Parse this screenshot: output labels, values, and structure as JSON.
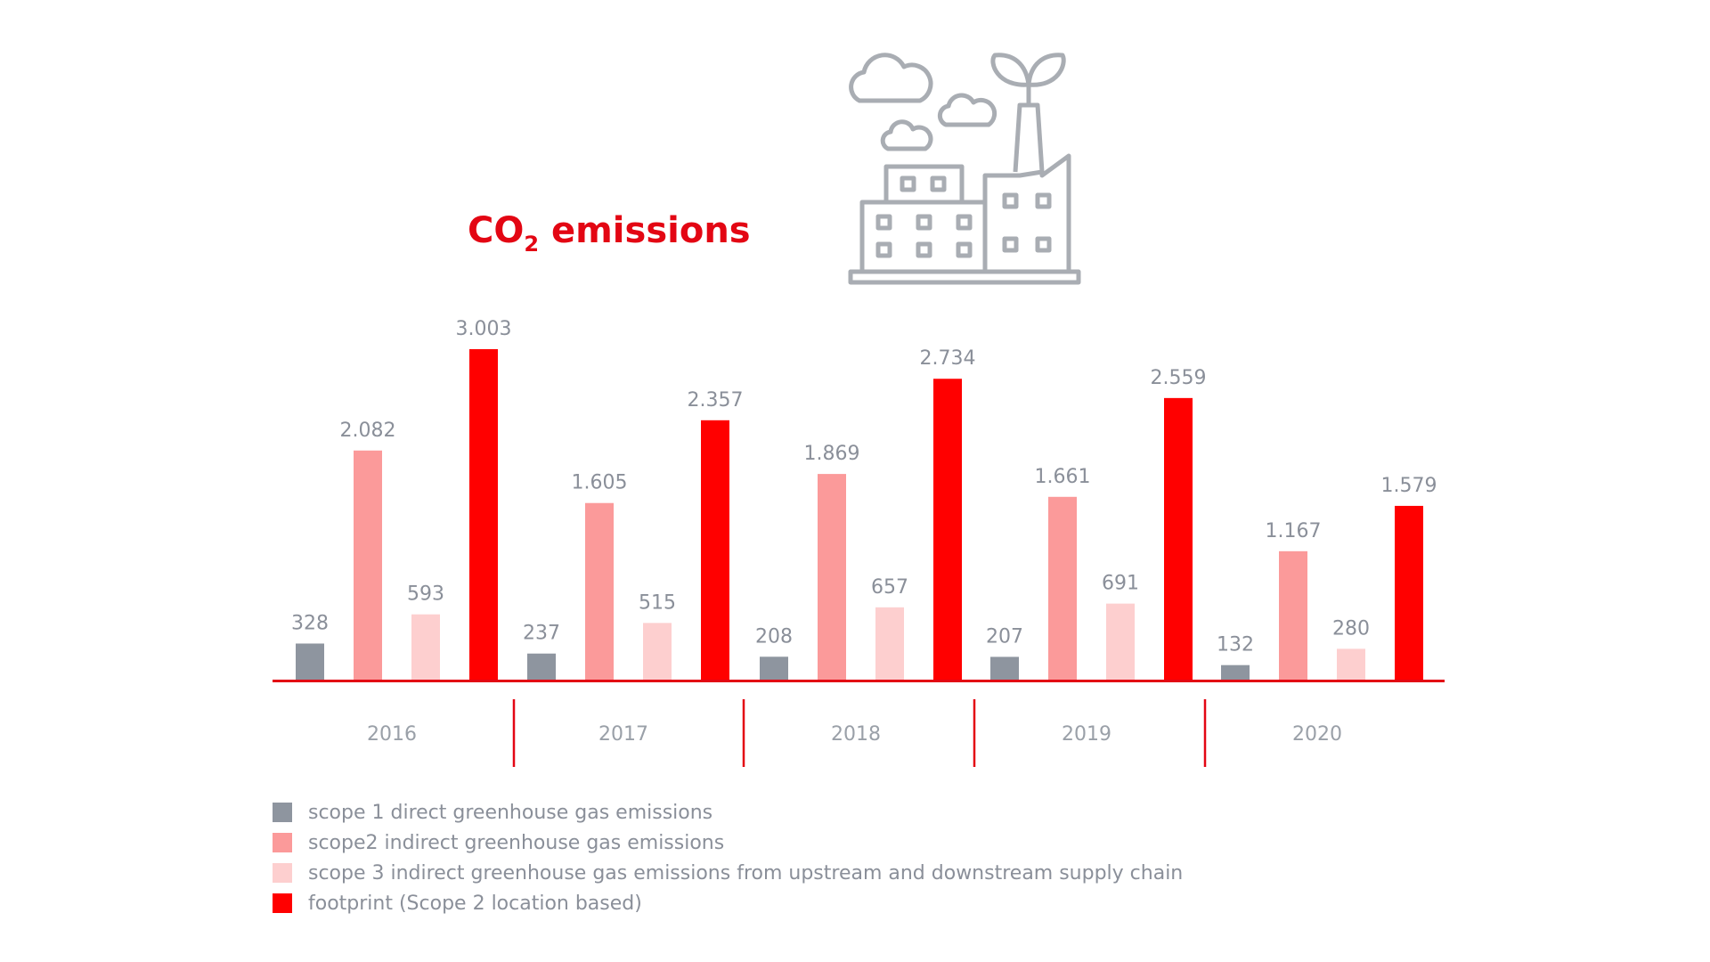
{
  "chart_data": {
    "type": "bar",
    "title_main": "CO",
    "title_sub": "2",
    "title_rest": " emissions",
    "categories": [
      "2016",
      "2017",
      "2018",
      "2019",
      "2020"
    ],
    "series": [
      {
        "name": "scope 1 direct greenhouse gas emissions",
        "color": "#8e959f",
        "values": [
          328,
          237,
          208,
          207,
          132
        ],
        "labels": [
          "328",
          "237",
          "208",
          "207",
          "132"
        ]
      },
      {
        "name": "scope2  indirect greenhouse gas emissions",
        "color": "#fb9a9a",
        "values": [
          2082,
          1605,
          1869,
          1661,
          1167
        ],
        "labels": [
          "2.082",
          "1.605",
          "1.869",
          "1.661",
          "1.167"
        ]
      },
      {
        "name": "scope 3 indirect greenhouse gas emissions from upstream and downstream supply chain",
        "color": "#fdcfcf",
        "values": [
          593,
          515,
          657,
          691,
          280
        ],
        "labels": [
          "593",
          "515",
          "657",
          "691",
          "280"
        ]
      },
      {
        "name": "footprint (Scope 2 location based)",
        "color": "#ff0000",
        "values": [
          3003,
          2357,
          2734,
          2559,
          1579
        ],
        "labels": [
          "3.003",
          "2.357",
          "2.734",
          "2.559",
          "1.579"
        ]
      }
    ],
    "ylim": [
      0,
      3003
    ],
    "grid": false,
    "legend_position": "bottom-left",
    "accent_color": "#e30613",
    "title_color": "#e30613",
    "icon": "factory-icon"
  }
}
